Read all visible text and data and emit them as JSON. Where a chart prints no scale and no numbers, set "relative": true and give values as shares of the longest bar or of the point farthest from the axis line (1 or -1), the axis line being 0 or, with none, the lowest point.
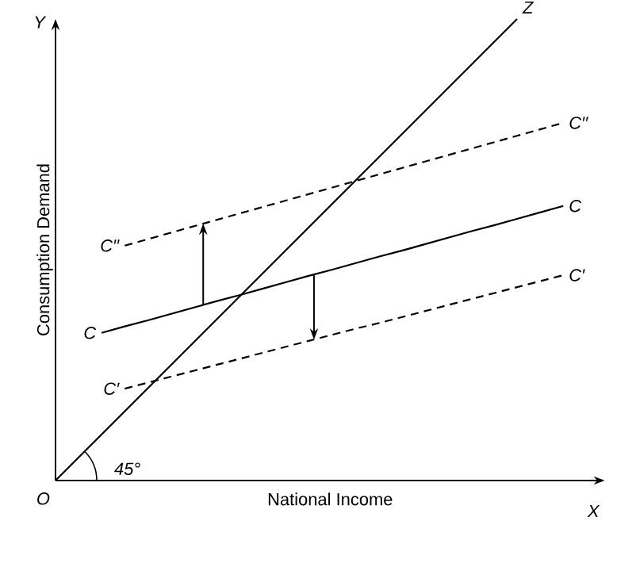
{
  "chart_data": {
    "type": "line",
    "relative": true,
    "xlabel": "National Income",
    "ylabel": "Consumption Demand",
    "marker": "none",
    "categories": [
      null,
      null,
      null,
      null,
      null,
      null,
      null,
      null,
      null,
      null,
      null,
      null,
      null,
      null,
      null,
      null,
      null,
      null,
      null,
      null,
      null,
      null,
      null
    ],
    "series": [
      {
        "name": "Z",
        "color": "#000000",
        "line_style": "solid",
        "values": [
          0,
          0.05,
          0.1,
          0.15,
          0.2,
          0.25,
          0.3,
          0.35,
          0.4,
          0.45,
          0.5,
          0.55,
          0.6,
          0.65,
          0.7,
          0.75,
          0.8,
          0.85,
          0.9,
          0.95,
          1.0,
          null,
          null
        ]
      },
      {
        "name": "C",
        "color": "#000000",
        "line_style": "solid",
        "values": [
          null,
          null,
          0.32,
          0.334,
          0.347,
          0.361,
          0.375,
          0.389,
          0.402,
          0.416,
          0.43,
          0.444,
          0.457,
          0.471,
          0.485,
          0.498,
          0.512,
          0.526,
          0.54,
          0.553,
          0.567,
          0.581,
          0.595
        ]
      },
      {
        "name": "C′′",
        "color": "#000000",
        "line_style": "dashed",
        "values": [
          null,
          null,
          null,
          0.509,
          0.523,
          0.537,
          0.551,
          0.565,
          0.579,
          0.593,
          0.607,
          0.621,
          0.635,
          0.649,
          0.663,
          0.677,
          0.691,
          0.705,
          0.719,
          0.733,
          0.747,
          0.761,
          0.775
        ]
      },
      {
        "name": "C′",
        "color": "#000000",
        "line_style": "dashed",
        "values": [
          null,
          null,
          null,
          0.199,
          0.212,
          0.225,
          0.238,
          0.251,
          0.264,
          0.277,
          0.29,
          0.303,
          0.316,
          0.329,
          0.341,
          0.354,
          0.367,
          0.38,
          0.393,
          0.406,
          0.419,
          0.432,
          0.445
        ]
      }
    ],
    "annotations": [
      "O",
      "X",
      "Y",
      "45°"
    ]
  }
}
